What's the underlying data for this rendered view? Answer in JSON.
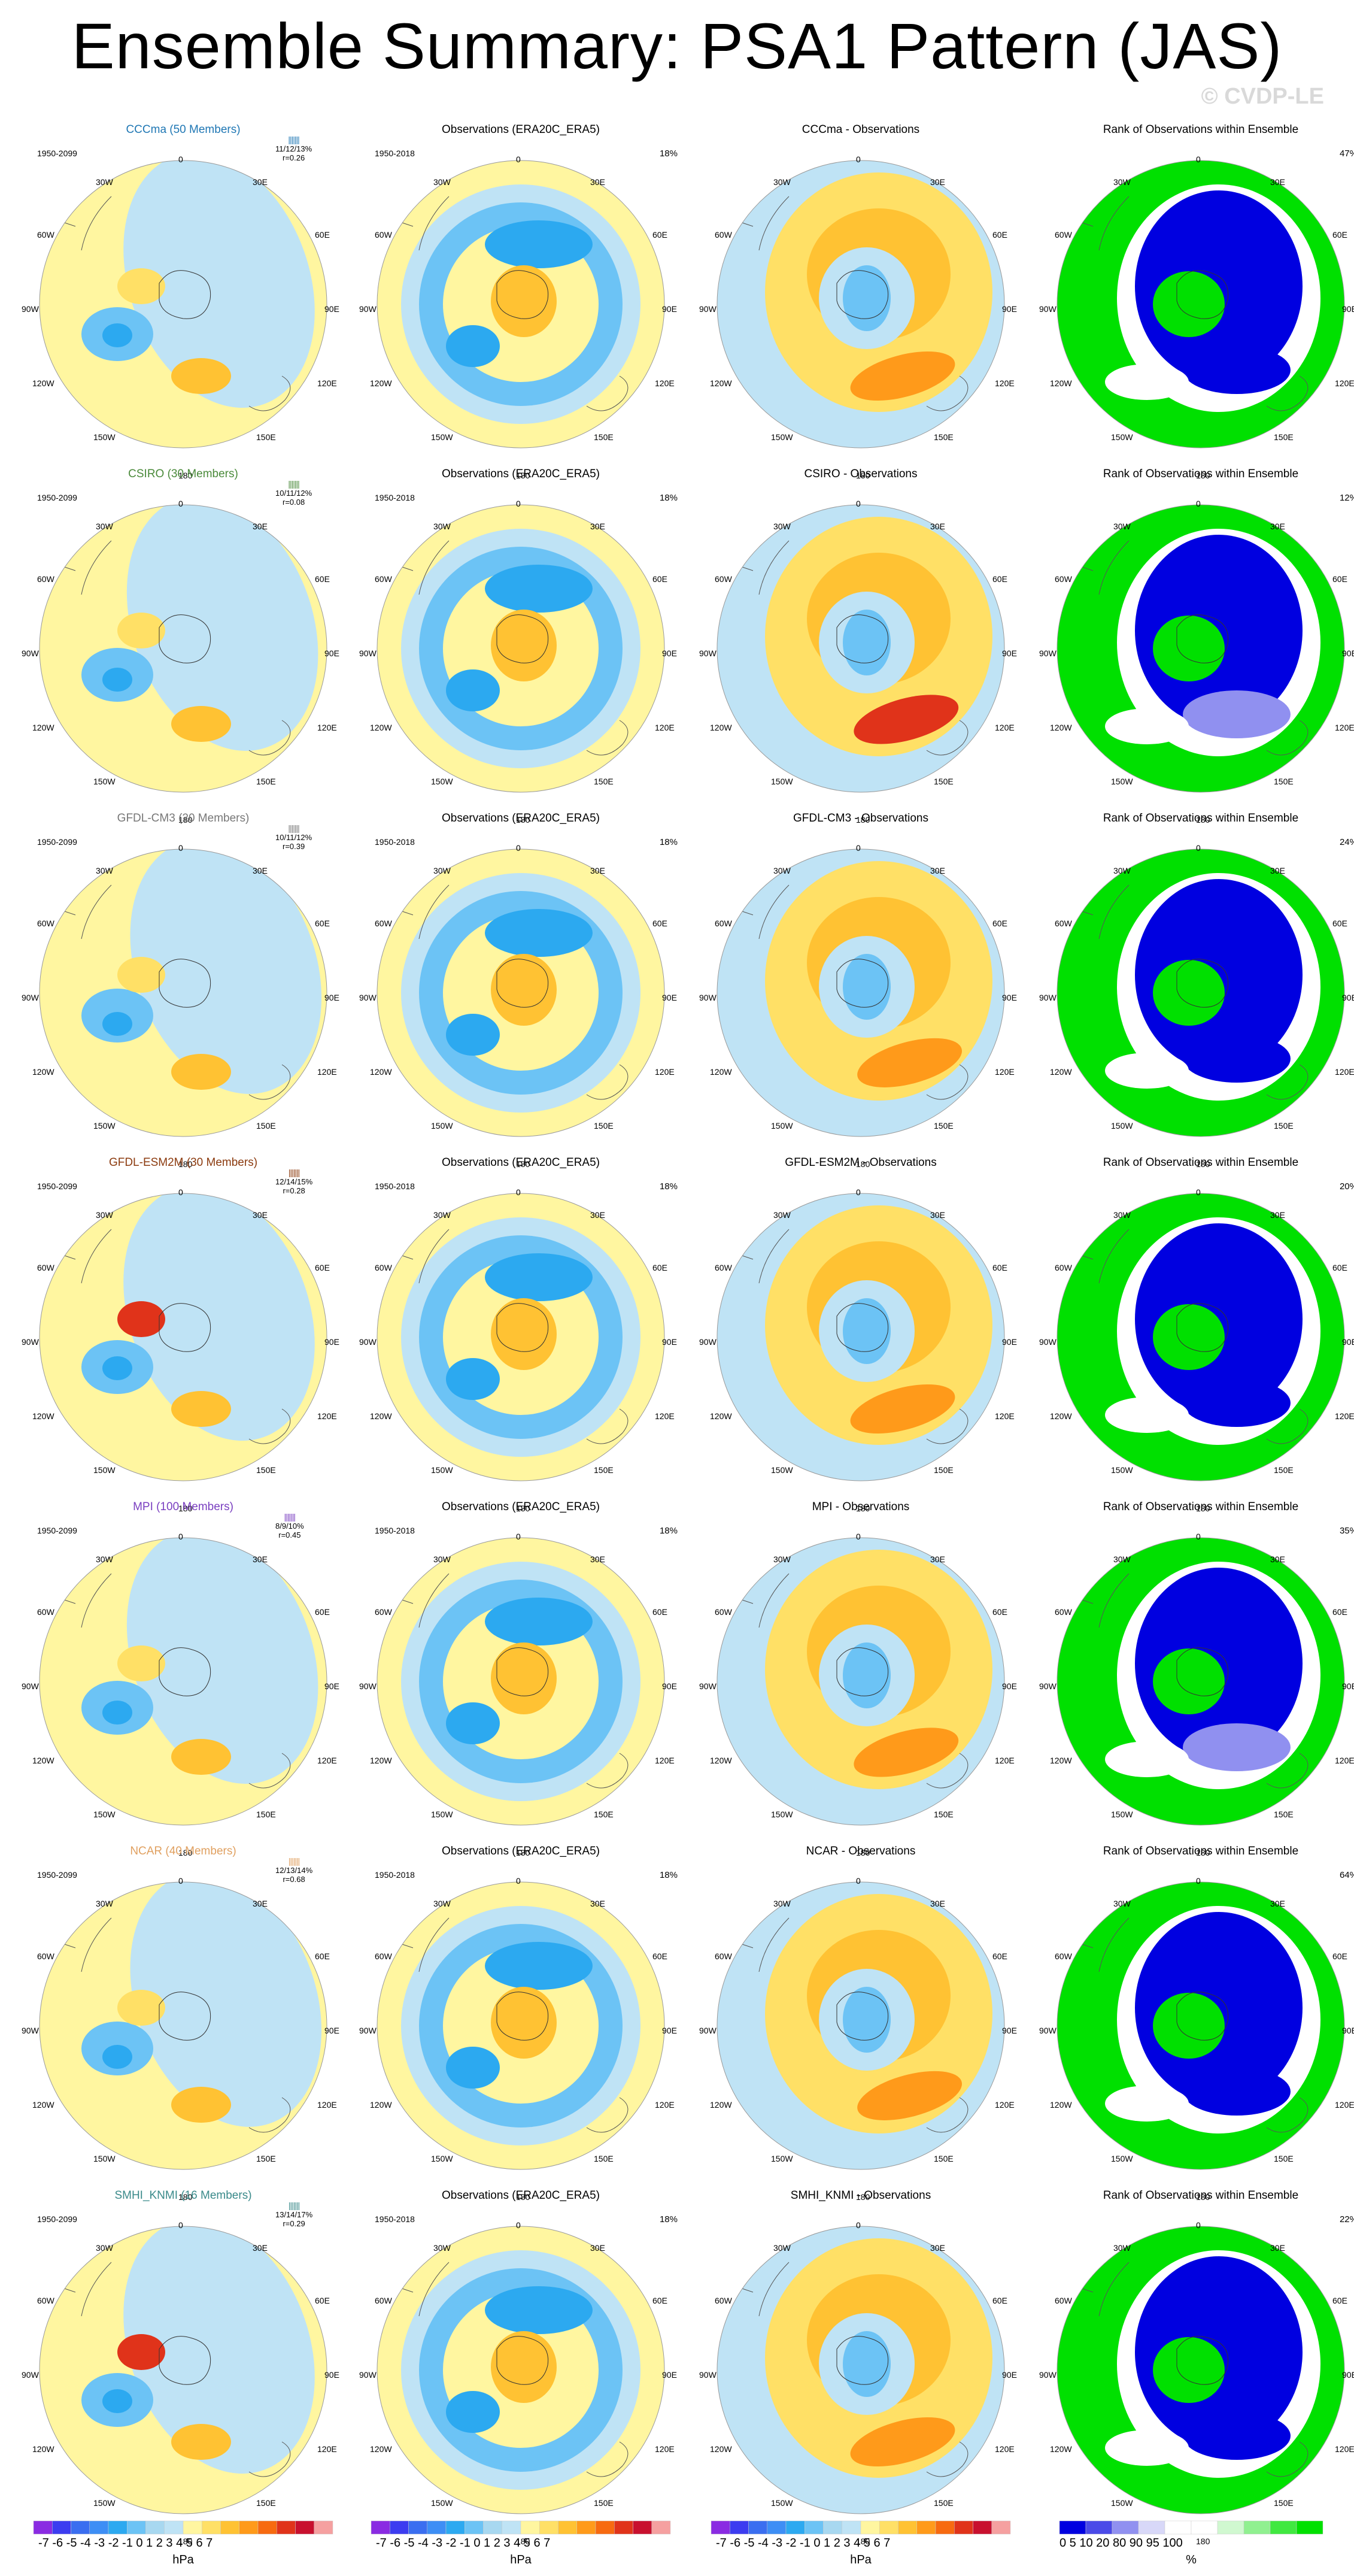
{
  "title": "Ensemble Summary: PSA1 Pattern (JAS)",
  "watermark": "© CVDP-LE",
  "model_years": "1950-2099",
  "obs_years": "1950-2018",
  "obs_title": "Observations (ERA20C_ERA5)",
  "obs_pct": "18%",
  "rank_title": "Rank of Observations within Ensemble",
  "lon_labels": {
    "top": "0",
    "bottom": "180",
    "l1": "30W",
    "r1": "30E",
    "l2": "60W",
    "r2": "60E",
    "l3": "90W",
    "r3": "90E",
    "l4": "120W",
    "r4": "120E",
    "l5": "150W",
    "r5": "150E"
  },
  "rows": [
    {
      "model": "CCCma (50 Members)",
      "model_color": "#1f77b4",
      "range": "11/12/13%",
      "r": "r=0.26",
      "diff_title": "CCCma - Observations",
      "rank_pct": "47%"
    },
    {
      "model": "CSIRO (30 Members)",
      "model_color": "#4a8a3a",
      "range": "10/11/12%",
      "r": "r=0.08",
      "diff_title": "CSIRO - Observations",
      "rank_pct": "12%"
    },
    {
      "model": "GFDL-CM3 (20 Members)",
      "model_color": "#777777",
      "range": "10/11/12%",
      "r": "r=0.39",
      "diff_title": "GFDL-CM3 - Observations",
      "rank_pct": "24%"
    },
    {
      "model": "GFDL-ESM2M (30 Members)",
      "model_color": "#8b3a0e",
      "range": "12/14/15%",
      "r": "r=0.28",
      "diff_title": "GFDL-ESM2M - Observations",
      "rank_pct": "20%"
    },
    {
      "model": "MPI (100 Members)",
      "model_color": "#7a3fc0",
      "range": "8/9/10%",
      "r": "r=0.45",
      "diff_title": "MPI - Observations",
      "rank_pct": "35%"
    },
    {
      "model": "NCAR (40 Members)",
      "model_color": "#e0a060",
      "range": "12/13/14%",
      "r": "r=0.68",
      "diff_title": "NCAR - Observations",
      "rank_pct": "64%"
    },
    {
      "model": "SMHI_KNMI (16 Members)",
      "model_color": "#3a8a8a",
      "range": "13/14/17%",
      "r": "r=0.29",
      "diff_title": "SMHI_KNMI - Observations",
      "rank_pct": "22%"
    }
  ],
  "hpa_bar": {
    "ticks": "-7 -6 -5 -4 -3 -2 -1 0  1  2  3  4  5  6  7",
    "unit": "hPa",
    "colors": [
      "#8a2be2",
      "#3c3cf0",
      "#3a6ef0",
      "#3d8ef5",
      "#2ca9f0",
      "#6cc3f5",
      "#a8d8f0",
      "#bfe3f5",
      "#fff6a0",
      "#ffe066",
      "#ffc233",
      "#ff9a1a",
      "#f76a10",
      "#e0331a",
      "#c8102e",
      "#f5a0a0"
    ]
  },
  "pct_bar": {
    "ticks": "0  5 10   20   80   90 95 100",
    "unit": "%",
    "colors": [
      "#0000e0",
      "#4a4ae8",
      "#9090f0",
      "#d8d8f8",
      "#ffffff",
      "#ffffff",
      "#d0f8d0",
      "#90f090",
      "#40e840",
      "#00e000"
    ]
  }
}
